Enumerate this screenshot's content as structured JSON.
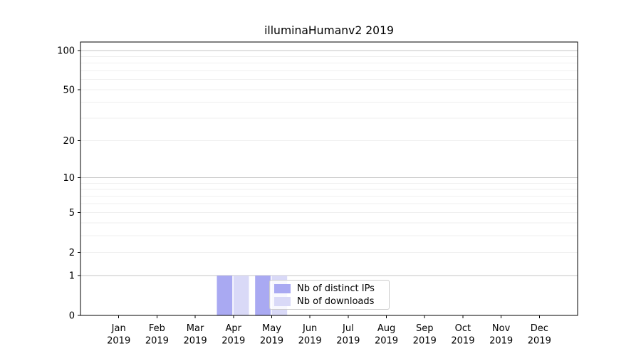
{
  "page": {
    "background": "#ffffff"
  },
  "chart_data": {
    "type": "bar",
    "title": "illuminaHumanv2 2019",
    "categories": [
      "Jan",
      "Feb",
      "Mar",
      "Apr",
      "May",
      "Jun",
      "Jul",
      "Aug",
      "Sep",
      "Oct",
      "Nov",
      "Dec"
    ],
    "x_tick_year": "2019",
    "series": [
      {
        "name": "Nb of distinct IPs",
        "color": "#a9a9f2",
        "values": [
          0,
          0,
          0,
          1,
          1,
          0,
          0,
          0,
          0,
          0,
          0,
          0
        ]
      },
      {
        "name": "Nb of downloads",
        "color": "#d9d9f7",
        "values": [
          0,
          0,
          0,
          1,
          1,
          0,
          0,
          0,
          0,
          0,
          0,
          0
        ]
      }
    ],
    "yscale": "log1p",
    "ylim": [
      0,
      116
    ],
    "yticks": [
      0,
      1,
      2,
      5,
      10,
      20,
      50,
      100
    ],
    "minor_yticks": [
      3,
      4,
      6,
      7,
      8,
      9,
      30,
      40,
      60,
      70,
      80,
      90
    ],
    "decade_ticks": [
      1,
      10,
      100
    ],
    "xlabel": "",
    "ylabel": "",
    "grid": "horizontal",
    "legend": {
      "entries": [
        "Nb of distinct IPs",
        "Nb of downloads"
      ],
      "position": "lower center inside"
    },
    "colors": {
      "spine": "#000000",
      "major_grid": "#c6c6c6",
      "minor_grid": "#efefef",
      "tick_label": "#000000",
      "title": "#000000"
    }
  }
}
